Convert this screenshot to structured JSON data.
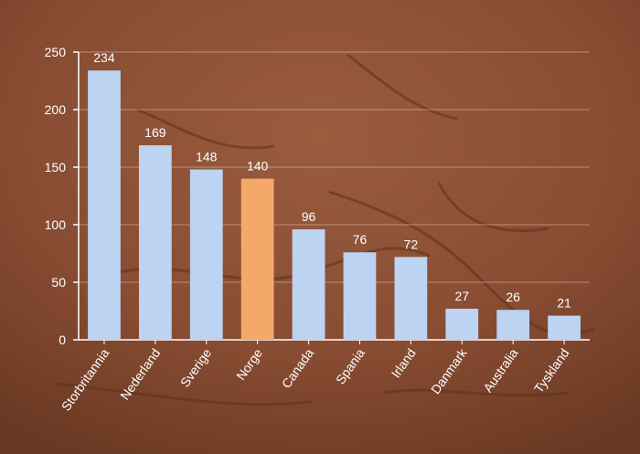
{
  "chart_data": {
    "type": "bar",
    "categories": [
      "Storbritannia",
      "Nederland",
      "Sverige",
      "Norge",
      "Canada",
      "Spania",
      "Irland",
      "Danmark",
      "Australia",
      "Tyskland"
    ],
    "values": [
      234,
      169,
      148,
      140,
      96,
      76,
      72,
      27,
      26,
      21
    ],
    "data_labels": [
      "234",
      "169",
      "148",
      "140",
      "96",
      "76",
      "72",
      "27",
      "26",
      "21"
    ],
    "highlight_category": "Norge",
    "ylim": [
      0,
      250
    ],
    "yticks": [
      0,
      50,
      100,
      150,
      200,
      250
    ],
    "ytick_labels": [
      "0",
      "50",
      "100",
      "150",
      "200",
      "250"
    ],
    "grid": true,
    "colors": {
      "bar": "#bcd3f2",
      "highlight": "#f4a86a",
      "background": "#8a4f35",
      "text": "#ffffff",
      "grid": "#d9b8a6"
    }
  }
}
